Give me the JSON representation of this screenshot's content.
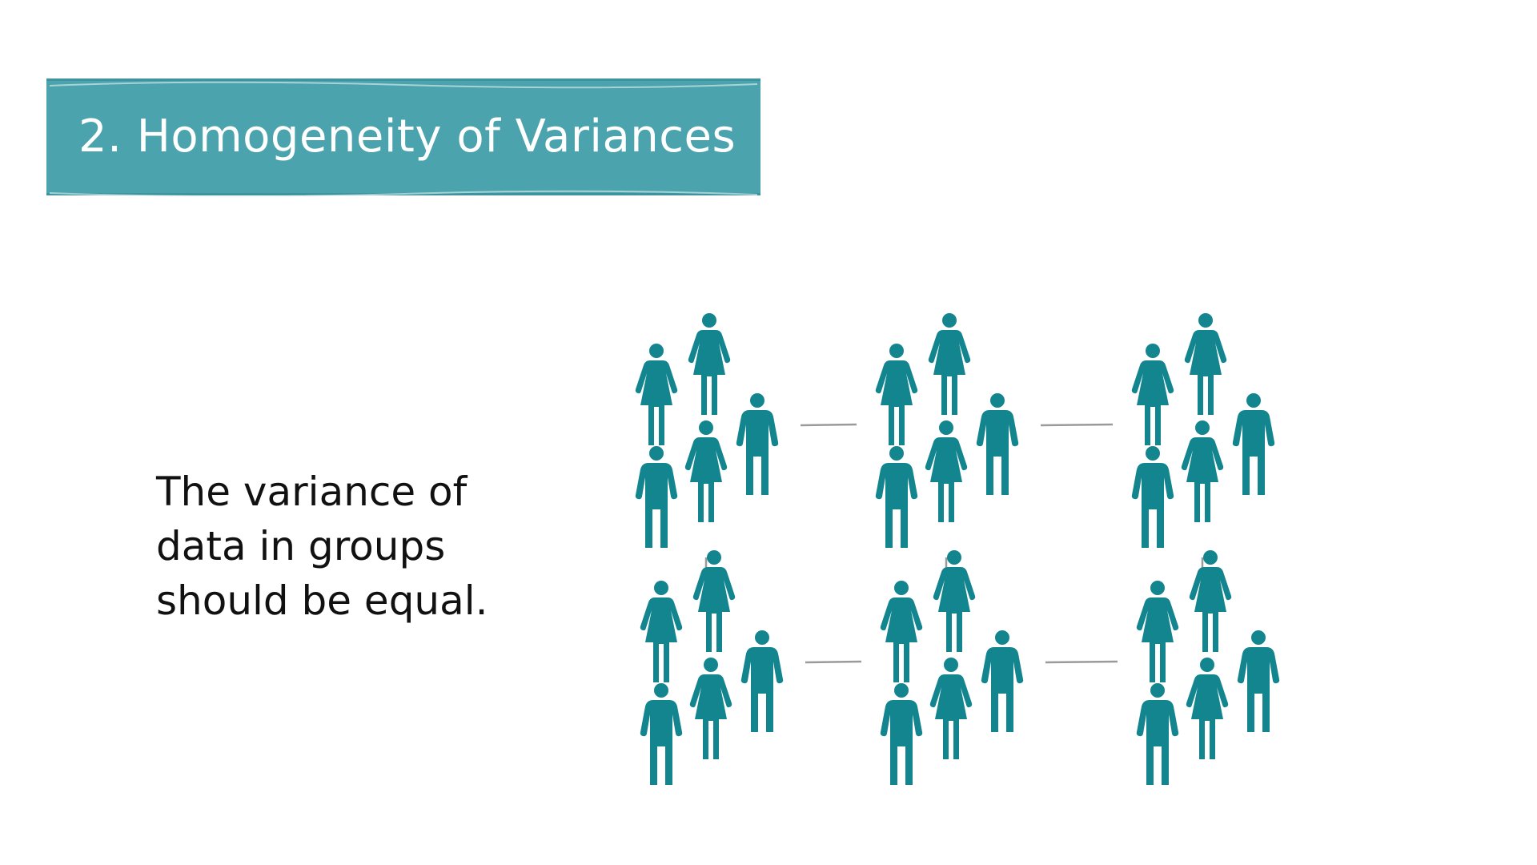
{
  "slide": {
    "title": "2. Homogeneity of Variances",
    "body_lines": [
      "The variance of",
      "data in groups",
      "should be equal."
    ]
  },
  "figure": {
    "icon_name": "people-group-icon",
    "groups_rows": 2,
    "groups_cols": 3,
    "people_per_group": 6,
    "person_color": "#13858f",
    "connector_color": "#9a9a9a"
  },
  "colors": {
    "banner": "#4aa3ad",
    "banner_text": "#ffffff",
    "body_text": "#111111",
    "background": "#ffffff"
  }
}
